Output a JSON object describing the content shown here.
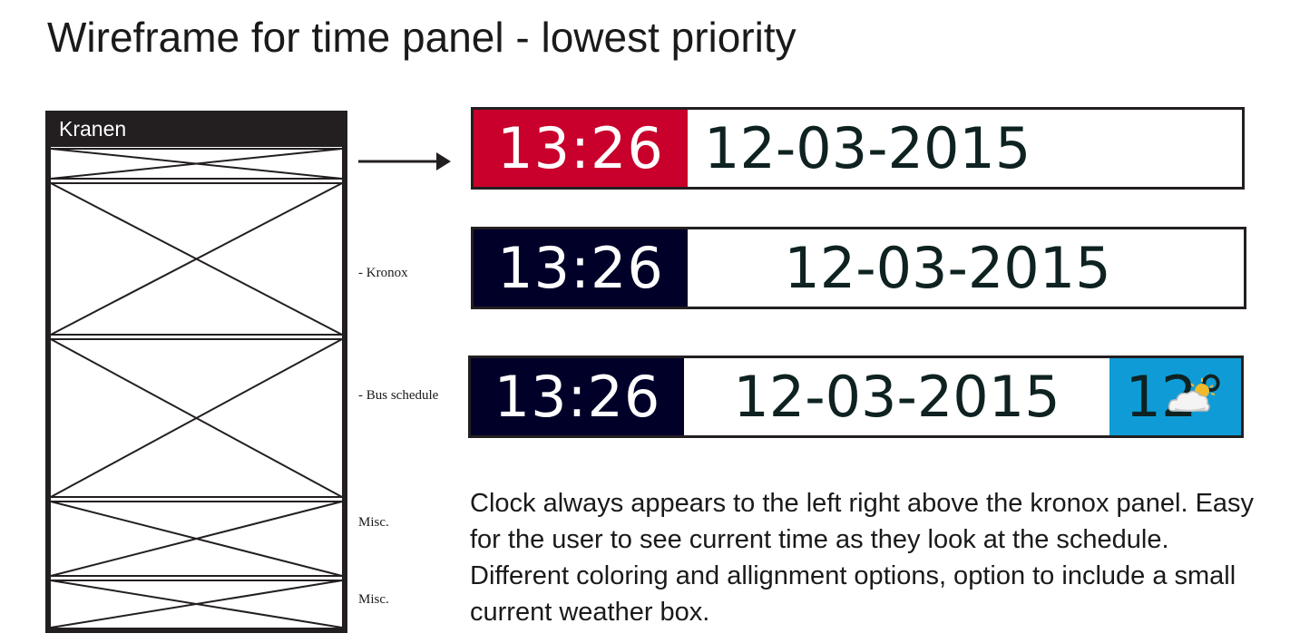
{
  "title": "Wireframe for time panel - lowest priority",
  "wireframe": {
    "header": "Kranen",
    "labels": {
      "kronox": "- Kronox",
      "bus": "- Bus schedule",
      "misc1": "Misc.",
      "misc2": "Misc."
    }
  },
  "panels": [
    {
      "time": "13:26",
      "date": "12-03-2015",
      "time_color": "#c8002b",
      "date_align": "left"
    },
    {
      "time": "13:26",
      "date": "12-03-2015",
      "time_color": "#000029",
      "date_align": "center"
    },
    {
      "time": "13:26",
      "date": "12-03-2015",
      "time_color": "#000029",
      "date_align": "center",
      "weather": {
        "temp": "12°",
        "icon": "partly-cloudy-icon",
        "color": "#0f9cd6"
      }
    }
  ],
  "description": "Clock always appears to the left right above the kronox panel. Easy for the user to see current time as they look at the schedule. Different coloring and allignment options, option to include a small current weather box."
}
